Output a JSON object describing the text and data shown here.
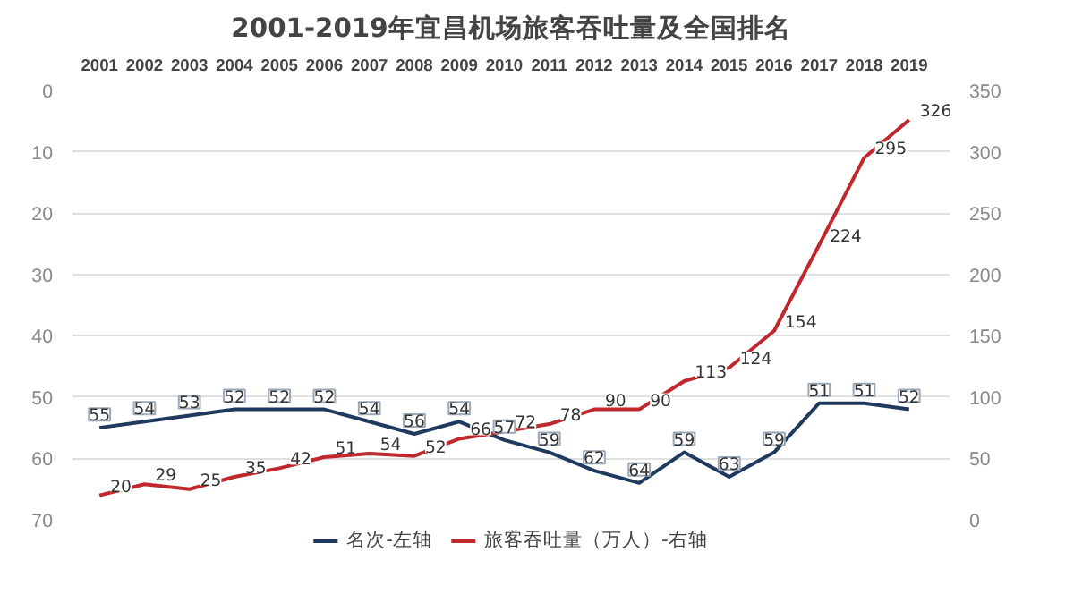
{
  "chart_data": {
    "type": "line",
    "title": "2001-2019年宜昌机场旅客吞吐量及全国排名",
    "categories": [
      "2001",
      "2002",
      "2003",
      "2004",
      "2005",
      "2006",
      "2007",
      "2008",
      "2009",
      "2010",
      "2011",
      "2012",
      "2013",
      "2014",
      "2015",
      "2016",
      "2017",
      "2018",
      "2019"
    ],
    "series": [
      {
        "name": "名次-左轴",
        "color": "#1f3a5f",
        "values": [
          55,
          54,
          53,
          52,
          52,
          52,
          54,
          56,
          54,
          57,
          59,
          62,
          64,
          59,
          63,
          59,
          51,
          51,
          52
        ]
      },
      {
        "name": "旅客吞吐量（万人）-右轴",
        "color": "#c0282d",
        "axis": "y2",
        "values": [
          20,
          29,
          25,
          35,
          42,
          51,
          54,
          52,
          66,
          72,
          78,
          90,
          90,
          113,
          124,
          154,
          224,
          295,
          326
        ]
      }
    ],
    "ylim": [
      70,
      0
    ],
    "yticks": [
      0,
      10,
      20,
      30,
      40,
      50,
      60,
      70
    ],
    "y2lim": [
      0,
      350
    ],
    "y2ticks": [
      0,
      50,
      100,
      150,
      200,
      250,
      300,
      350
    ],
    "grid": "y",
    "legend": "bottom",
    "data_labels": true
  }
}
